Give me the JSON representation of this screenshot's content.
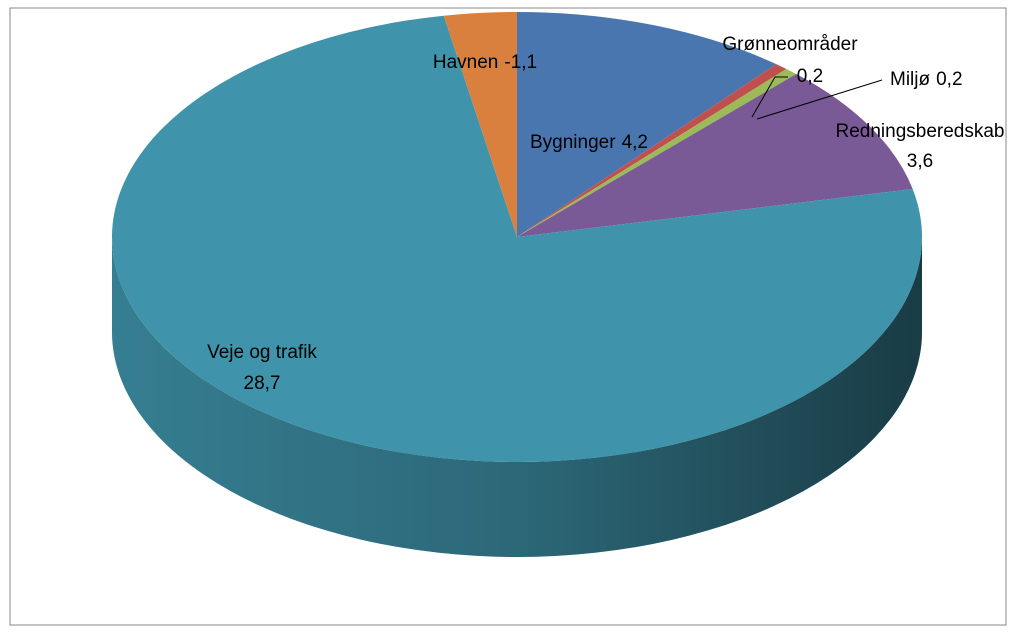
{
  "chart_data": {
    "type": "pie",
    "categories": [
      "Bygninger",
      "Grønneområder",
      "Miljø",
      "Redningsberedskab",
      "Veje og trafik",
      "Havnen"
    ],
    "values": [
      4.2,
      0.2,
      0.2,
      3.6,
      28.7,
      -1.1
    ],
    "value_labels": [
      "4,2",
      "0,2",
      "0,2",
      "3,6",
      "28,7",
      "-1,1"
    ],
    "colors": [
      "#4a76b0",
      "#c0504d",
      "#9bbb59",
      "#7a5a96",
      "#3f94ab",
      "#d9803e"
    ]
  }
}
